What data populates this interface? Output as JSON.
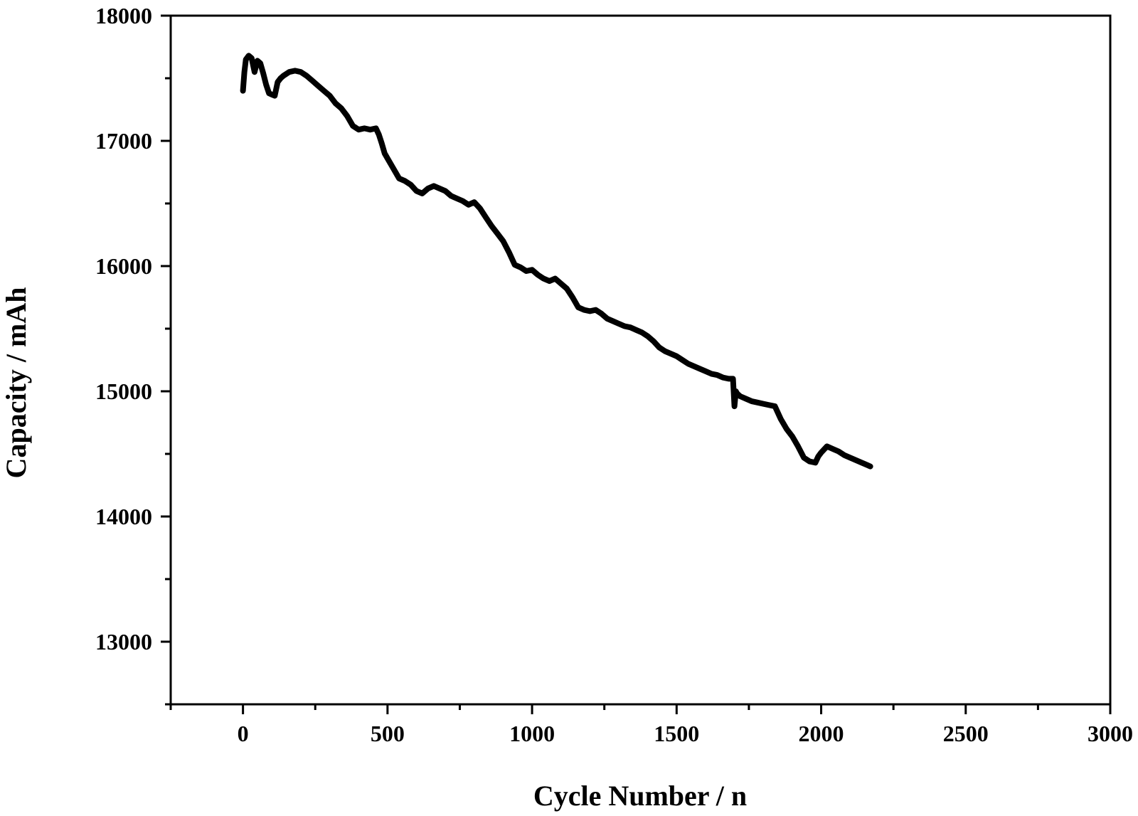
{
  "chart_data": {
    "type": "line",
    "xlabel": "Cycle Number / n",
    "ylabel": "Capacity / mAh",
    "xlim": [
      -250,
      3000
    ],
    "ylim": [
      12500,
      18000
    ],
    "x_ticks": [
      0,
      500,
      1000,
      1500,
      2000,
      2500,
      3000
    ],
    "x_tick_labels": [
      "0",
      "500",
      "1000",
      "1500",
      "2000",
      "2500",
      "3000"
    ],
    "x_minor_ticks": [
      -250,
      250,
      750,
      1250,
      1750,
      2250,
      2750
    ],
    "y_ticks": [
      13000,
      14000,
      15000,
      16000,
      17000,
      18000
    ],
    "y_tick_labels": [
      "13000",
      "14000",
      "15000",
      "16000",
      "17000",
      "18000"
    ],
    "y_minor_ticks": [
      12500,
      13500,
      14500,
      15500,
      16500,
      17500
    ],
    "grid": false,
    "series": [
      {
        "color": "#000000",
        "x": [
          0,
          5,
          10,
          20,
          30,
          40,
          50,
          60,
          70,
          80,
          90,
          100,
          110,
          120,
          130,
          140,
          160,
          180,
          200,
          220,
          240,
          260,
          280,
          300,
          320,
          340,
          360,
          380,
          400,
          420,
          440,
          460,
          470,
          480,
          490,
          500,
          520,
          540,
          560,
          580,
          600,
          620,
          640,
          660,
          680,
          700,
          720,
          740,
          760,
          780,
          800,
          820,
          840,
          860,
          880,
          900,
          920,
          940,
          960,
          980,
          1000,
          1020,
          1040,
          1060,
          1080,
          1100,
          1120,
          1140,
          1160,
          1180,
          1200,
          1220,
          1240,
          1260,
          1280,
          1300,
          1320,
          1340,
          1360,
          1380,
          1400,
          1420,
          1440,
          1460,
          1480,
          1500,
          1520,
          1540,
          1560,
          1580,
          1600,
          1620,
          1640,
          1660,
          1680,
          1695,
          1700,
          1705,
          1710,
          1720,
          1740,
          1760,
          1780,
          1800,
          1820,
          1840,
          1860,
          1880,
          1900,
          1920,
          1940,
          1960,
          1980,
          1990,
          2000,
          2020,
          2040,
          2060,
          2080,
          2100,
          2120,
          2140,
          2160,
          2170
        ],
        "y": [
          17400,
          17550,
          17650,
          17680,
          17660,
          17550,
          17640,
          17620,
          17540,
          17450,
          17380,
          17370,
          17360,
          17470,
          17500,
          17520,
          17550,
          17560,
          17550,
          17520,
          17480,
          17440,
          17400,
          17360,
          17300,
          17260,
          17200,
          17120,
          17090,
          17100,
          17090,
          17100,
          17050,
          16980,
          16900,
          16860,
          16780,
          16700,
          16680,
          16650,
          16600,
          16580,
          16620,
          16640,
          16620,
          16600,
          16560,
          16540,
          16520,
          16490,
          16510,
          16460,
          16390,
          16320,
          16260,
          16200,
          16110,
          16010,
          15990,
          15960,
          15970,
          15930,
          15900,
          15880,
          15900,
          15860,
          15820,
          15750,
          15670,
          15650,
          15640,
          15650,
          15620,
          15580,
          15560,
          15540,
          15520,
          15510,
          15490,
          15470,
          15440,
          15400,
          15350,
          15320,
          15300,
          15280,
          15250,
          15220,
          15200,
          15180,
          15160,
          15140,
          15130,
          15110,
          15100,
          15100,
          14880,
          15000,
          14980,
          14960,
          14940,
          14920,
          14910,
          14900,
          14890,
          14880,
          14780,
          14700,
          14640,
          14560,
          14470,
          14440,
          14430,
          14480,
          14510,
          14560,
          14540,
          14520,
          14490,
          14470,
          14450,
          14430,
          14410,
          14400
        ]
      }
    ]
  }
}
